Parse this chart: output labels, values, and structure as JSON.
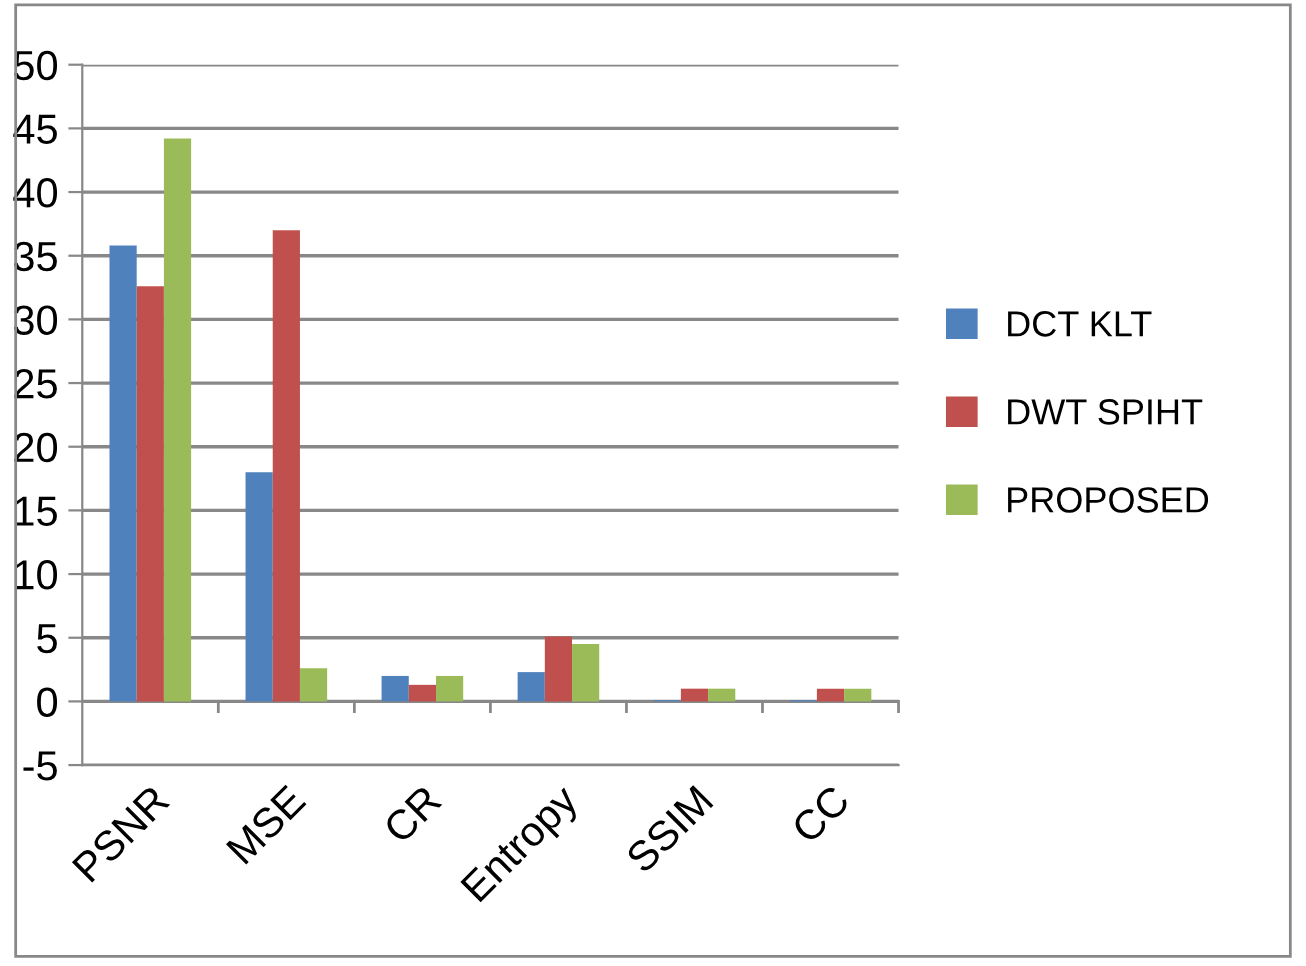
{
  "chart_data": {
    "type": "bar",
    "categories": [
      "PSNR",
      "MSE",
      "CR",
      "Entropy",
      "SSIM",
      "CC"
    ],
    "series": [
      {
        "name": "DCT KLT",
        "color": "#4f81bd",
        "values": [
          35.8,
          18,
          2.0,
          2.3,
          0.1,
          0.1
        ]
      },
      {
        "name": "DWT SPIHT",
        "color": "#c0504d",
        "values": [
          32.6,
          37,
          1.3,
          5.1,
          1.0,
          1.0
        ]
      },
      {
        "name": "PROPOSED",
        "color": "#9bbb59",
        "values": [
          44.2,
          2.6,
          2.0,
          4.5,
          1.0,
          1.0
        ]
      }
    ],
    "ylim": [
      -5,
      50
    ],
    "yticks": [
      -5,
      0,
      5,
      10,
      15,
      20,
      25,
      30,
      35,
      40,
      45,
      50
    ],
    "grid": "y",
    "legend": "right"
  }
}
